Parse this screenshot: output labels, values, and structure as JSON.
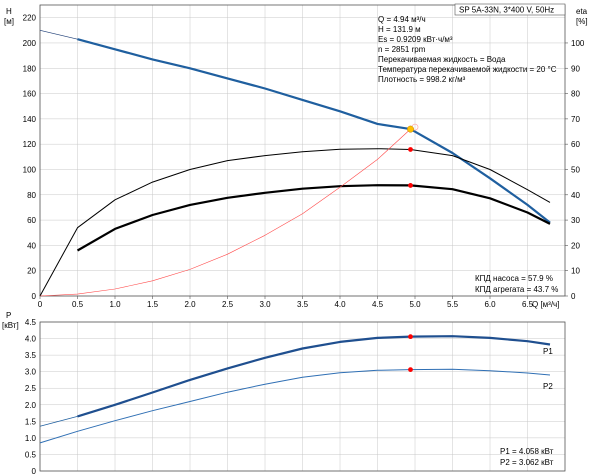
{
  "chart_data": [
    {
      "type": "line",
      "top_label": "SP 5A-33N, 3*400 V, 50Hz",
      "y_axis_label": "H",
      "y_axis_unit": "[м]",
      "y2_axis_label": "eta",
      "y2_axis_unit": "[%]",
      "x_axis_label": "Q [м³/ч]",
      "xlim": [
        0,
        7.0
      ],
      "ylim": [
        0,
        230
      ],
      "y2lim": [
        0,
        115
      ],
      "x_ticks": [
        "0",
        "0.5",
        "1.0",
        "1.5",
        "2.0",
        "2.5",
        "3.0",
        "3.5",
        "4.0",
        "4.5",
        "5.0",
        "5.5",
        "6.0",
        "6.5"
      ],
      "y_ticks": [
        "0",
        "20",
        "40",
        "60",
        "80",
        "100",
        "120",
        "140",
        "160",
        "180",
        "200",
        "220"
      ],
      "y2_ticks": [
        "0",
        "10",
        "20",
        "30",
        "40",
        "50",
        "60",
        "70",
        "80",
        "90",
        "100"
      ],
      "grid": true,
      "info_lines": [
        "Q = 4.94 м³/ч",
        "H = 131.9 м",
        "Es = 0.9209 кВт·ч/м³",
        "n = 2851 rpm",
        "Перекачиваемая жидкость = Вода",
        "Температура перекачиваемой жидкости = 20 °C",
        "Плотность = 998.2 кг/м³"
      ],
      "efficiency_lines": [
        "КПД насоса = 57.9 %",
        "КПД агрегата = 43.7 %"
      ],
      "series": [
        {
          "key": "head_extended",
          "role": "head",
          "axis": "left",
          "color": "#1f3f77",
          "x": [
            0,
            0.5,
            1.0,
            1.5,
            2.0,
            2.5,
            3.0,
            3.5,
            4.0,
            4.5,
            4.94,
            5.5,
            6.0,
            6.5,
            6.8
          ],
          "y": [
            210,
            203,
            195,
            187,
            180,
            172,
            164,
            155,
            146,
            136,
            131.9,
            113,
            93,
            72,
            58
          ]
        },
        {
          "key": "head_operating",
          "role": "head",
          "axis": "left",
          "color": "#1f5f9f",
          "x": [
            0.5,
            1.0,
            1.5,
            2.0,
            2.5,
            3.0,
            3.5,
            4.0,
            4.5,
            4.94,
            5.5,
            6.0,
            6.5,
            6.8
          ],
          "y": [
            203,
            195,
            187,
            180,
            172,
            164,
            155,
            146,
            136,
            131.9,
            113,
            93,
            72,
            58
          ]
        },
        {
          "key": "eta_pump",
          "role": "efficiency",
          "axis": "right",
          "color": "#000000",
          "x": [
            0,
            0.5,
            1.0,
            1.5,
            2.0,
            2.5,
            3.0,
            3.5,
            4.0,
            4.5,
            4.94,
            5.5,
            6.0,
            6.5,
            6.8
          ],
          "y": [
            0,
            27,
            38,
            45,
            50,
            53.5,
            55.5,
            57,
            58,
            58.2,
            57.9,
            55.5,
            50,
            42,
            37
          ]
        },
        {
          "key": "eta_unit",
          "role": "efficiency",
          "axis": "right",
          "color": "#000000",
          "x": [
            0.5,
            1.0,
            1.5,
            2.0,
            2.5,
            3.0,
            3.5,
            4.0,
            4.5,
            4.94,
            5.5,
            6.0,
            6.5,
            6.8
          ],
          "y": [
            18,
            26.5,
            32,
            36,
            38.8,
            40.8,
            42.4,
            43.4,
            43.8,
            43.7,
            42.2,
            38.6,
            33,
            28.5
          ]
        },
        {
          "key": "system_curve",
          "role": "system",
          "axis": "left",
          "color": "#ff4a4a",
          "x": [
            0,
            0.5,
            1.0,
            1.5,
            2.0,
            2.5,
            3.0,
            3.5,
            4.0,
            4.5,
            4.94
          ],
          "y": [
            0,
            1.5,
            5.5,
            12,
            21,
            33,
            48,
            65,
            86,
            108,
            131.9
          ]
        }
      ],
      "markers": [
        {
          "x": 4.94,
          "y": 131.9,
          "axis": "left",
          "color": "#ffc000"
        },
        {
          "x": 4.94,
          "y": 57.9,
          "axis": "right",
          "color": "#ff0000"
        },
        {
          "x": 4.94,
          "y": 43.7,
          "axis": "right",
          "color": "#ff0000"
        }
      ]
    },
    {
      "type": "line",
      "y_axis_label": "P",
      "y_axis_unit": "[кВт]",
      "xlim": [
        0,
        7.0
      ],
      "ylim": [
        0,
        4.5
      ],
      "y_ticks": [
        "0",
        "0.5",
        "1.0",
        "1.5",
        "2.0",
        "2.5",
        "3.0",
        "3.5",
        "4.0",
        "4.5"
      ],
      "grid": true,
      "power_lines": [
        "P1 = 4.058 кВт",
        "P2 = 3.062 кВт"
      ],
      "series": [
        {
          "key": "p1_extended",
          "name": "P1",
          "color": "#1f5f9f",
          "x": [
            0,
            0.5
          ],
          "y": [
            1.35,
            1.65
          ]
        },
        {
          "key": "p1",
          "name": "P1",
          "color": "#1f4f8f",
          "x": [
            0.5,
            1.0,
            1.5,
            2.0,
            2.5,
            3.0,
            3.5,
            4.0,
            4.5,
            4.94,
            5.5,
            6.0,
            6.5,
            6.8
          ],
          "y": [
            1.65,
            2.0,
            2.37,
            2.75,
            3.1,
            3.42,
            3.7,
            3.9,
            4.02,
            4.058,
            4.07,
            4.02,
            3.92,
            3.82
          ]
        },
        {
          "key": "p2",
          "name": "P2",
          "color": "#2f6fb4",
          "x": [
            0,
            0.5,
            1.0,
            1.5,
            2.0,
            2.5,
            3.0,
            3.5,
            4.0,
            4.5,
            4.94,
            5.5,
            6.0,
            6.5,
            6.8
          ],
          "y": [
            0.85,
            1.2,
            1.52,
            1.82,
            2.1,
            2.38,
            2.62,
            2.83,
            2.97,
            3.04,
            3.062,
            3.07,
            3.03,
            2.96,
            2.9
          ]
        }
      ],
      "markers": [
        {
          "x": 4.94,
          "y": 4.058,
          "color": "#ff0000"
        },
        {
          "x": 4.94,
          "y": 3.062,
          "color": "#ff0000"
        }
      ]
    }
  ]
}
